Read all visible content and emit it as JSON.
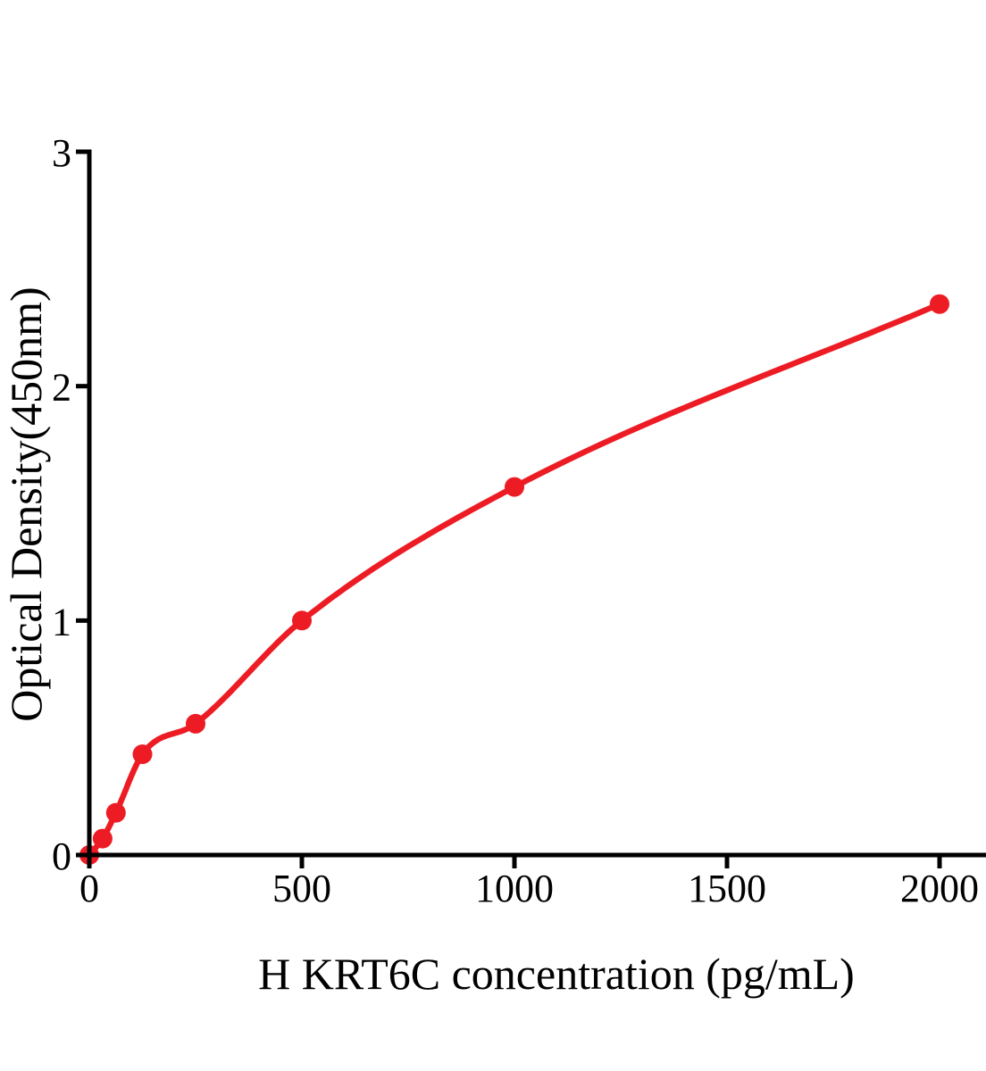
{
  "figure": {
    "background_color": "#ffffff"
  },
  "chart_data": {
    "type": "line",
    "title": "",
    "xlabel": "H KRT6C concentration (pg/mL)",
    "ylabel": "Optical Density(450nm)",
    "series": [
      {
        "color": "#ed1c24",
        "marker": "circle",
        "x": [
          0,
          31.25,
          62.5,
          125,
          250,
          500,
          1000,
          2000
        ],
        "y": [
          0,
          0.07,
          0.18,
          0.43,
          0.56,
          1.0,
          1.57,
          2.35
        ]
      }
    ],
    "x_ticks": [
      0,
      500,
      1000,
      1500,
      2000
    ],
    "y_ticks": [
      0,
      1,
      2,
      3
    ],
    "xlim": [
      0,
      2110
    ],
    "ylim": [
      0,
      3
    ],
    "grid": false,
    "legend": false,
    "axis_color": "#000000"
  }
}
